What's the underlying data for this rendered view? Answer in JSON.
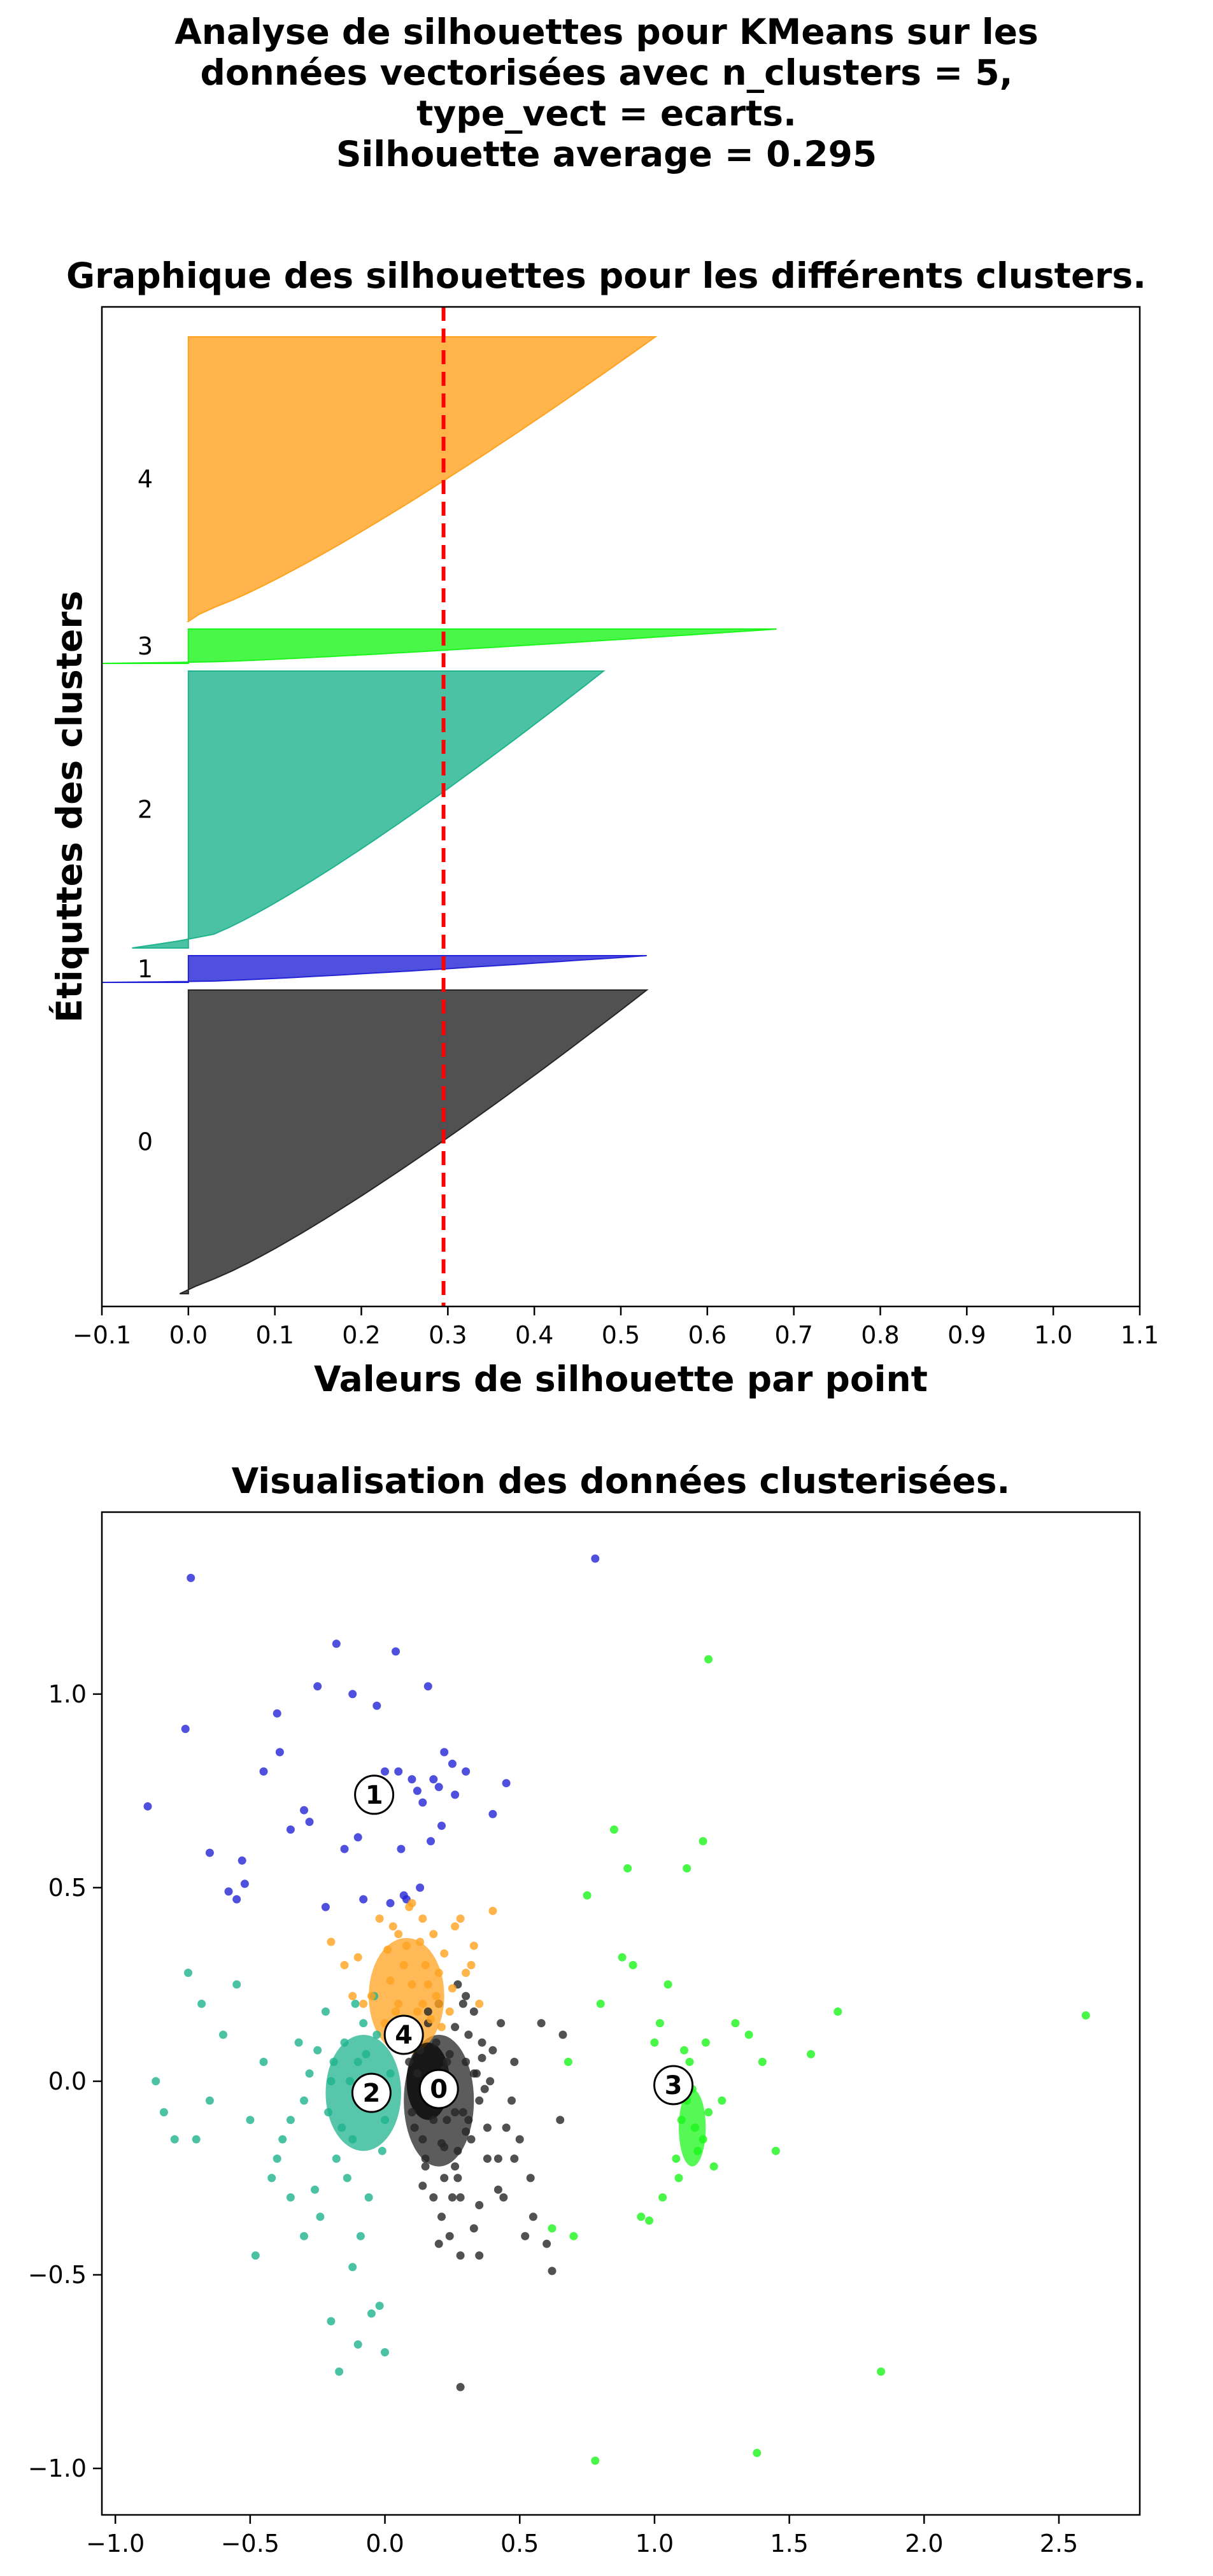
{
  "figure": {
    "title_lines": [
      "Analyse de silhouettes pour KMeans sur les",
      "données vectorisées avec n_clusters = 5,",
      "type_vect = ecarts.",
      "Silhouette average = 0.295"
    ]
  },
  "colors": {
    "cluster_0": "#262626",
    "cluster_1": "#2424d6",
    "cluster_2": "#1fb38e",
    "cluster_3": "#1cf51c",
    "cluster_4": "#ffa21f",
    "average_line": "#ff0000"
  },
  "chart_data": [
    {
      "type": "area",
      "title": "Graphique des silhouettes pour les différents clusters.",
      "xlabel": "Valeurs de silhouette par point",
      "ylabel": "Étiquttes des clusters",
      "xlim": [
        -0.1,
        1.1
      ],
      "xticks": [
        "−0.1",
        "0.0",
        "0.1",
        "0.2",
        "0.3",
        "0.4",
        "0.5",
        "0.6",
        "0.7",
        "0.8",
        "0.9",
        "1.0",
        "1.1"
      ],
      "xtick_values": [
        -0.1,
        0.0,
        0.1,
        0.2,
        0.3,
        0.4,
        0.5,
        0.6,
        0.7,
        0.8,
        0.9,
        1.0,
        1.1
      ],
      "silhouette_average": 0.295,
      "grid": false,
      "series": [
        {
          "name": "0",
          "color": "#262626",
          "size_fraction": 0.318,
          "min": -0.01,
          "max": 0.53
        },
        {
          "name": "1",
          "color": "#2424d6",
          "size_fraction": 0.028,
          "min": -0.1,
          "max": 0.53
        },
        {
          "name": "2",
          "color": "#1fb38e",
          "size_fraction": 0.29,
          "min": -0.065,
          "max": 0.48
        },
        {
          "name": "3",
          "color": "#1cf51c",
          "size_fraction": 0.036,
          "min": -0.1,
          "max": 0.68
        },
        {
          "name": "4",
          "color": "#ffa21f",
          "size_fraction": 0.298,
          "min": 0.0,
          "max": 0.54
        }
      ]
    },
    {
      "type": "scatter",
      "title": "Visualisation des données clusterisées.",
      "xlim": [
        -1.05,
        2.8
      ],
      "ylim": [
        -1.12,
        1.47
      ],
      "xticks": [
        "−1.0",
        "−0.5",
        "0.0",
        "0.5",
        "1.0",
        "1.5",
        "2.0",
        "2.5"
      ],
      "xtick_values": [
        -1.0,
        -0.5,
        0.0,
        0.5,
        1.0,
        1.5,
        2.0,
        2.5
      ],
      "yticks": [
        "1.0",
        "0.5",
        "0.0",
        "−0.5",
        "−1.0"
      ],
      "ytick_values": [
        1.0,
        0.5,
        0.0,
        -0.5,
        -1.0
      ],
      "grid": false,
      "centers": [
        {
          "label": "0",
          "x": 0.2,
          "y": -0.02
        },
        {
          "label": "1",
          "x": -0.04,
          "y": 0.74
        },
        {
          "label": "2",
          "x": -0.05,
          "y": -0.03
        },
        {
          "label": "3",
          "x": 1.07,
          "y": -0.01
        },
        {
          "label": "4",
          "x": 0.07,
          "y": 0.12
        }
      ],
      "cluster_points": [
        {
          "cluster": "0",
          "color": "#262626",
          "x": [
            0.23,
            0.18,
            0.31,
            0.12,
            0.27,
            0.35,
            0.16,
            0.22,
            0.4,
            0.1,
            0.28,
            0.33,
            0.19,
            0.25,
            0.45,
            0.14,
            0.3,
            0.38,
            0.21,
            0.09,
            0.26,
            0.34,
            0.17,
            0.42,
            0.29,
            0.13,
            0.36,
            0.24,
            0.2,
            0.32,
            0.15,
            0.39,
            0.11,
            0.27,
            0.47,
            0.22,
            0.18,
            0.35,
            0.28,
            0.12,
            0.31,
            0.24,
            0.19,
            0.43,
            0.26,
            0.16,
            0.33,
            0.21,
            0.37,
            0.14,
            0.29,
            0.23,
            0.48,
            0.17,
            0.3,
            0.25,
            0.1,
            0.36,
            0.2,
            0.27,
            0.52,
            0.55,
            0.6,
            0.62,
            0.5,
            0.58,
            0.65,
            0.48,
            0.44,
            0.66,
            0.54,
            0.28,
            0.18,
            0.35,
            0.42,
            0.3,
            0.22,
            0.26,
            0.38,
            0.15,
            0.33
          ],
          "y": [
            0.05,
            -0.1,
            0.12,
            0.02,
            -0.18,
            -0.05,
            0.15,
            -0.25,
            0.08,
            -0.08,
            -0.3,
            0.18,
            0.1,
            0.0,
            -0.12,
            -0.15,
            0.22,
            -0.2,
            -0.35,
            0.05,
            0.14,
            0.02,
            -0.02,
            -0.28,
            -0.08,
            0.08,
            0.1,
            -0.4,
            0.2,
            -0.15,
            -0.22,
            0.0,
            -0.12,
            0.25,
            -0.05,
            0.03,
            -0.3,
            -0.32,
            -0.45,
            0.12,
            -0.1,
            0.07,
            -0.05,
            0.15,
            -0.22,
            0.18,
            -0.38,
            -0.16,
            -0.02,
            -0.27,
            0.2,
            -0.1,
            -0.2,
            0.01,
            0.05,
            -0.3,
            0.1,
            0.06,
            -0.42,
            -0.25,
            -0.4,
            -0.35,
            -0.42,
            -0.49,
            -0.15,
            0.15,
            -0.1,
            0.05,
            -0.3,
            0.12,
            -0.25,
            -0.79,
            -0.05,
            -0.45,
            -0.2,
            -0.13,
            -0.17,
            -0.08,
            -0.12,
            -0.2,
            0.02
          ]
        },
        {
          "cluster": "1",
          "color": "#2424d6",
          "x": [
            -0.72,
            -0.74,
            -0.45,
            -0.39,
            -0.53,
            -0.52,
            -0.35,
            -0.1,
            0.06,
            0.17,
            0.21,
            0.26,
            0.4,
            0.45,
            -0.28,
            -0.15,
            -0.05,
            0.05,
            0.12,
            0.18,
            0.22,
            0.25,
            0.13,
            0.08,
            -0.22,
            -0.3,
            -0.55,
            -0.58,
            -0.65,
            -0.88,
            -0.12,
            -0.03,
            0.0,
            0.1,
            0.16,
            0.04,
            -0.18,
            -0.25,
            -0.4,
            0.78,
            0.3,
            0.2,
            0.14,
            -0.08,
            0.02,
            0.07
          ],
          "y": [
            1.3,
            0.91,
            0.8,
            0.85,
            0.57,
            0.51,
            0.65,
            0.63,
            0.6,
            0.62,
            0.66,
            0.74,
            0.69,
            0.77,
            0.67,
            0.6,
            0.7,
            0.8,
            0.75,
            0.78,
            0.85,
            0.82,
            0.5,
            0.47,
            0.45,
            0.7,
            0.47,
            0.49,
            0.59,
            0.71,
            1.0,
            0.97,
            0.8,
            0.78,
            1.02,
            1.11,
            1.13,
            1.02,
            0.95,
            1.35,
            0.8,
            0.76,
            0.72,
            0.47,
            0.46,
            0.48
          ]
        },
        {
          "cluster": "2",
          "color": "#1fb38e",
          "x": [
            -0.1,
            -0.05,
            -0.15,
            0.0,
            -0.2,
            -0.08,
            -0.12,
            -0.25,
            0.02,
            -0.18,
            -0.03,
            -0.3,
            -0.22,
            -0.14,
            -0.06,
            -0.28,
            -0.35,
            -0.11,
            -0.01,
            -0.19,
            -0.24,
            -0.07,
            -0.32,
            -0.16,
            -0.4,
            -0.09,
            -0.13,
            -0.04,
            -0.21,
            -0.26,
            -0.45,
            -0.38,
            -0.5,
            -0.55,
            -0.6,
            -0.65,
            -0.7,
            -0.78,
            -0.82,
            -0.85,
            -0.73,
            -0.68,
            -0.2,
            -0.1,
            -0.05,
            -0.17,
            -0.02,
            0.0,
            -0.12,
            -0.3,
            -0.42,
            -0.35,
            -0.48
          ],
          "y": [
            0.05,
            -0.05,
            0.1,
            -0.1,
            0.0,
            0.15,
            -0.15,
            0.08,
            0.02,
            -0.2,
            0.12,
            -0.05,
            0.18,
            -0.25,
            -0.3,
            0.02,
            -0.1,
            0.2,
            -0.18,
            0.05,
            -0.35,
            0.07,
            0.1,
            -0.12,
            -0.2,
            -0.4,
            0.0,
            0.22,
            -0.08,
            -0.28,
            0.05,
            -0.15,
            -0.1,
            0.25,
            0.12,
            -0.05,
            -0.15,
            -0.15,
            -0.08,
            0.0,
            0.28,
            0.2,
            -0.62,
            -0.68,
            -0.6,
            -0.75,
            -0.58,
            -0.7,
            -0.48,
            -0.4,
            -0.25,
            -0.3,
            -0.45
          ]
        },
        {
          "cluster": "3",
          "color": "#1cf51c",
          "x": [
            1.1,
            1.12,
            1.15,
            1.08,
            1.2,
            1.05,
            1.18,
            1.13,
            1.09,
            1.16,
            1.22,
            1.03,
            1.11,
            1.14,
            1.19,
            1.25,
            0.98,
            0.95,
            1.3,
            1.35,
            1.4,
            1.45,
            1.58,
            1.68,
            2.6,
            1.84,
            1.38,
            0.78,
            0.7,
            0.62,
            0.68,
            0.8,
            0.88,
            0.92,
            1.0,
            1.05,
            1.12,
            1.18,
            1.2,
            0.85,
            0.75,
            0.9,
            1.02
          ],
          "y": [
            -0.1,
            -0.05,
            -0.12,
            -0.2,
            -0.08,
            0.0,
            -0.15,
            0.05,
            -0.25,
            -0.18,
            -0.22,
            -0.3,
            0.08,
            -0.02,
            0.1,
            -0.05,
            -0.36,
            -0.35,
            0.15,
            0.12,
            0.05,
            -0.18,
            0.07,
            0.18,
            0.17,
            -0.75,
            -0.96,
            -0.98,
            -0.4,
            -0.38,
            0.05,
            0.2,
            0.32,
            0.3,
            0.1,
            0.25,
            0.55,
            0.62,
            1.09,
            0.65,
            0.48,
            0.55,
            0.15
          ]
        },
        {
          "cluster": "4",
          "color": "#ffa21f",
          "x": [
            0.05,
            0.1,
            0.0,
            0.15,
            -0.05,
            0.08,
            0.12,
            0.2,
            -0.1,
            0.03,
            0.18,
            0.25,
            0.06,
            -0.02,
            0.14,
            0.22,
            0.3,
            -0.15,
            0.09,
            0.17,
            0.02,
            0.11,
            0.26,
            -0.08,
            0.33,
            0.07,
            0.19,
            0.13,
            0.04,
            0.21,
            0.35,
            0.4,
            -0.2,
            0.16,
            0.28,
            0.01,
            0.24,
            -0.12,
            0.32,
            0.1,
            0.05,
            0.14,
            0.08,
            0.2
          ],
          "y": [
            0.2,
            0.25,
            0.15,
            0.3,
            0.22,
            0.35,
            0.18,
            0.28,
            0.32,
            0.4,
            0.38,
            0.24,
            0.12,
            0.42,
            0.2,
            0.33,
            0.28,
            0.3,
            0.45,
            0.16,
            0.26,
            0.1,
            0.4,
            0.2,
            0.35,
            0.3,
            0.22,
            0.36,
            0.18,
            0.14,
            0.2,
            0.44,
            0.36,
            0.25,
            0.42,
            0.34,
            0.18,
            0.22,
            0.3,
            0.46,
            0.38,
            0.42,
            0.14,
            0.2
          ]
        }
      ]
    }
  ]
}
